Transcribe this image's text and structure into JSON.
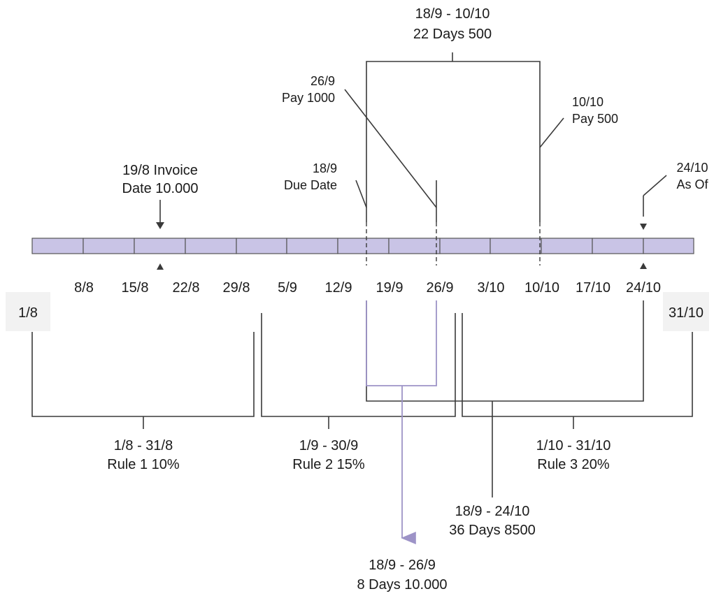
{
  "timeline": {
    "start_label": "1/8",
    "end_label": "31/10",
    "tick_labels": [
      "8/8",
      "15/8",
      "22/8",
      "29/8",
      "5/9",
      "12/9",
      "19/9",
      "26/9",
      "3/10",
      "10/10",
      "17/10",
      "24/10"
    ]
  },
  "callouts": {
    "invoice": {
      "line1": "19/8 Invoice",
      "line2": "Date 10.000"
    },
    "due": {
      "line1": "18/9",
      "line2": "Due Date"
    },
    "pay1000": {
      "line1": "26/9",
      "line2": "Pay 1000"
    },
    "pay500": {
      "line1": "10/10",
      "line2": "Pay 500"
    },
    "asof": {
      "line1": "24/10",
      "line2": "As Of"
    }
  },
  "intervals": {
    "top": {
      "line1": "18/9 - 10/10",
      "line2": "22 Days 500"
    },
    "mid": {
      "line1": "18/9 - 24/10",
      "line2": "36 Days 8500"
    },
    "bottom": {
      "line1": "18/9 - 26/9",
      "line2": "8 Days 10.000"
    }
  },
  "rules": [
    {
      "line1": "1/8 - 31/8",
      "line2": "Rule 1 10%"
    },
    {
      "line1": "1/9 - 30/9",
      "line2": "Rule 2 15%"
    },
    {
      "line1": "1/10 - 31/10",
      "line2": "Rule 3 20%"
    }
  ],
  "colors": {
    "bar_fill": "#c9c4e6",
    "accent": "#9d93c7",
    "line": "#3a3a3a"
  }
}
